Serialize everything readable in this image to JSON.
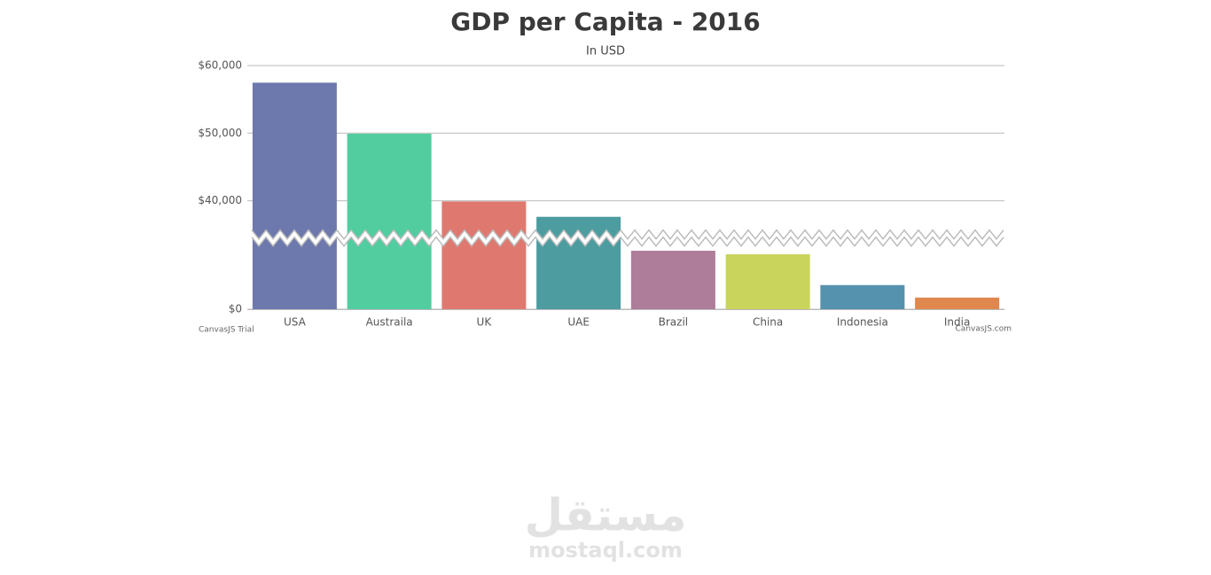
{
  "chart_data": {
    "type": "bar",
    "title": "GDP per Capita - 2016",
    "subtitle": "In USD",
    "categories": [
      "USA",
      "Austraila",
      "UK",
      "UAE",
      "Brazil",
      "China",
      "Indonesia",
      "India"
    ],
    "values": [
      57466,
      49927,
      39899,
      37622,
      8650,
      8123,
      3570,
      1723
    ],
    "colors": [
      "#6d78ad",
      "#51cda0",
      "#df7970",
      "#4c9ca0",
      "#ae7d99",
      "#c9d45c",
      "#5592ad",
      "#df874d"
    ],
    "ylim": [
      0,
      60000
    ],
    "yticks": [
      {
        "value": 0,
        "label": "$0"
      },
      {
        "value": 40000,
        "label": "$40,000"
      },
      {
        "value": 50000,
        "label": "$50,000"
      },
      {
        "value": 60000,
        "label": "$60,000"
      }
    ],
    "scale_break": [
      10000,
      35000
    ],
    "grid": true,
    "credits": [
      "CanvasJS Trial",
      "CanvasJS.com"
    ]
  },
  "watermark": {
    "arabic": "مستقل",
    "latin": "mostaql.com"
  }
}
